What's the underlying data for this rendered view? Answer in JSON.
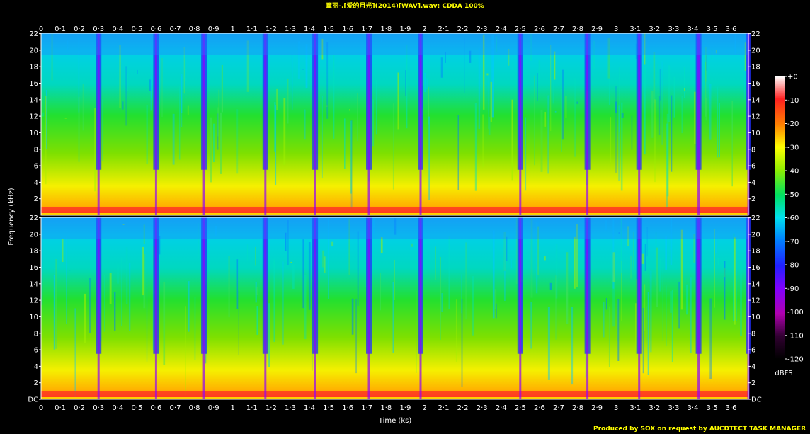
{
  "title": "童丽-.[爱的月光](2014)[WAV].wav: CDDA 100%",
  "footer": "Produced by SOX on request by AUCDTECT TASK MANAGER",
  "chart_data": {
    "type": "heatmap",
    "title": "童丽-.[爱的月光](2014)[WAV].wav: CDDA 100%",
    "xlabel": "Time (ks)",
    "ylabel": "Frequency (kHz)",
    "colorbar_label": "dBFS",
    "x_ticks": [
      "0",
      "0·1",
      "0·2",
      "0·3",
      "0·4",
      "0·5",
      "0·6",
      "0·7",
      "0·8",
      "0·9",
      "1",
      "1·1",
      "1·2",
      "1·3",
      "1·4",
      "1·5",
      "1·6",
      "1·7",
      "1·8",
      "1·9",
      "2",
      "2·1",
      "2·2",
      "2·3",
      "2·4",
      "2·5",
      "2·6",
      "2·7",
      "2·8",
      "2·9",
      "3",
      "3·1",
      "3·2",
      "3·3",
      "3·4",
      "3·5",
      "3·6"
    ],
    "xlim": [
      0,
      3.69
    ],
    "y_ticks_channel": [
      "DC",
      "2",
      "4",
      "6",
      "8",
      "10",
      "12",
      "14",
      "16",
      "18",
      "20",
      "22"
    ],
    "ylim": [
      0,
      22.05
    ],
    "channels": 2,
    "colorbar_ticks": [
      "+0",
      "-10",
      "-20",
      "-30",
      "-40",
      "-50",
      "-60",
      "-70",
      "-80",
      "-90",
      "-100",
      "-110",
      "-120"
    ],
    "colorbar_range_dbfs": [
      -120,
      0
    ],
    "track_boundaries_ks": [
      0.3,
      0.6,
      0.85,
      1.17,
      1.43,
      1.71,
      1.98,
      2.5,
      2.85,
      3.12,
      3.43,
      3.69
    ],
    "grid": false
  }
}
